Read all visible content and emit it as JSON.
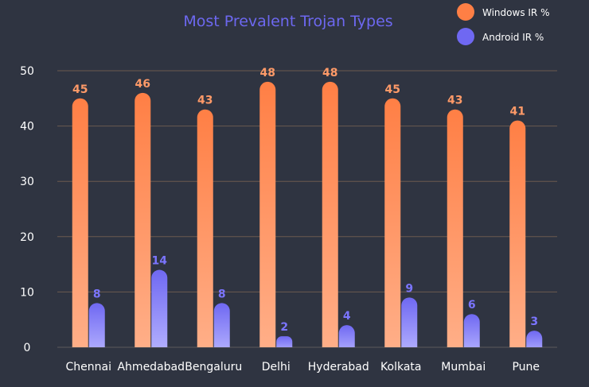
{
  "chart_data": {
    "type": "bar",
    "title": "Most Prevalent Trojan Types",
    "xlabel": "",
    "ylabel": "",
    "categories": [
      "Chennai",
      "Ahmedabad",
      "Bengaluru",
      "Delhi",
      "Hyderabad",
      "Kolkata",
      "Mumbai",
      "Pune"
    ],
    "series": [
      {
        "name": "Windows IR %",
        "values": [
          45,
          46,
          43,
          48,
          48,
          45,
          43,
          41
        ],
        "color_top": "#ff7f45",
        "color_bottom": "#ffb08a"
      },
      {
        "name": "Android IR %",
        "values": [
          8,
          14,
          8,
          2,
          4,
          9,
          6,
          3
        ],
        "color_top": "#6f68f2",
        "color_bottom": "#b7b4ff"
      }
    ],
    "ylim": [
      0,
      50
    ],
    "yticks": [
      0,
      10,
      20,
      30,
      40,
      50
    ],
    "grid": true,
    "legend_position": "top-right",
    "colors": {
      "background": "#2f3441",
      "grid": "#6b5a50",
      "title": "#6d68f0",
      "axis_text": "#ffffff",
      "windows_label": "#ff9a68",
      "android_label": "#7b75ff"
    }
  }
}
